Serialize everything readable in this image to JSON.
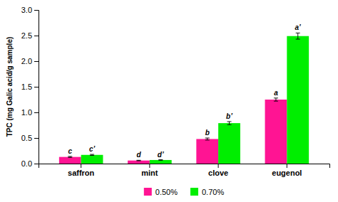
{
  "chart_data": {
    "type": "bar",
    "categories": [
      "saffron",
      "mint",
      "clove",
      "eugenol"
    ],
    "series": [
      {
        "name": "0.50%",
        "color": "#FF1493",
        "values": [
          0.13,
          0.06,
          0.48,
          1.25
        ],
        "errors": [
          0.01,
          0.005,
          0.02,
          0.03
        ],
        "annotations": [
          "c",
          "d",
          "b",
          "a"
        ]
      },
      {
        "name": "0.70%",
        "color": "#00EE00",
        "values": [
          0.17,
          0.07,
          0.79,
          2.49
        ],
        "errors": [
          0.01,
          0.005,
          0.03,
          0.06
        ],
        "annotations": [
          "c’",
          "d’",
          "b’",
          "a’"
        ]
      }
    ],
    "ylabel": "TPC (mg Galic acid/g sample)",
    "ylim": [
      0.0,
      3.0
    ],
    "yticks": [
      {
        "value": 0.0,
        "label": "0.0"
      },
      0.5,
      {
        "value": 1.0,
        "label": "1.0"
      },
      1.5,
      {
        "value": 2.0,
        "label": "2.0"
      },
      2.5,
      {
        "value": 3.0,
        "label": "3.0"
      }
    ],
    "grid": false,
    "legend": "bottom"
  }
}
